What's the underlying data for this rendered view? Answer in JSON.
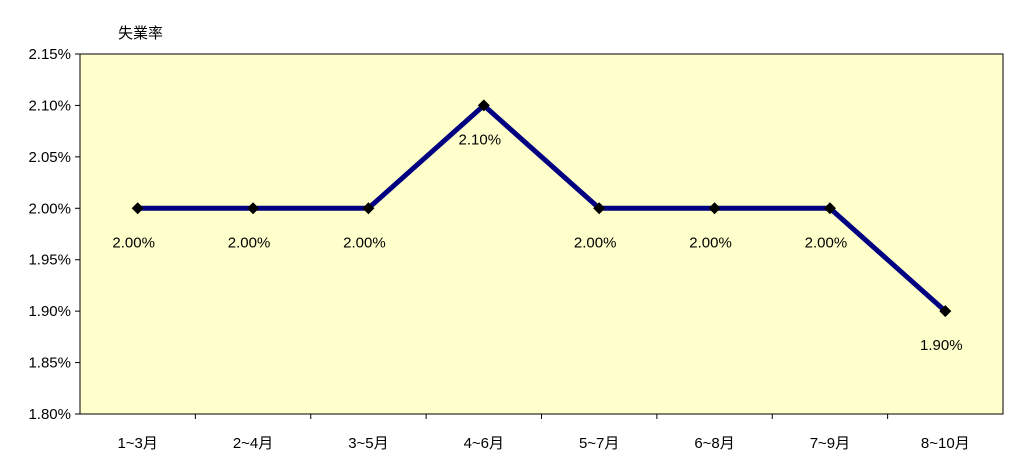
{
  "chart_data": {
    "type": "line",
    "ylabel": "失業率",
    "categories": [
      "1~3月",
      "2~4月",
      "3~5月",
      "4~6月",
      "5~7月",
      "6~8月",
      "7~9月",
      "8~10月"
    ],
    "values": [
      2.0,
      2.0,
      2.0,
      2.1,
      2.0,
      2.0,
      2.0,
      1.9
    ],
    "data_labels": [
      "2.00%",
      "2.00%",
      "2.00%",
      "2.10%",
      "2.00%",
      "2.00%",
      "2.00%",
      "1.90%"
    ],
    "ylim": [
      1.8,
      2.15
    ],
    "yticks": [
      1.8,
      1.85,
      1.9,
      1.95,
      2.0,
      2.05,
      2.1,
      2.15
    ],
    "ytick_labels": [
      "1.80%",
      "1.85%",
      "1.90%",
      "1.95%",
      "2.00%",
      "2.05%",
      "2.10%",
      "2.15%"
    ],
    "grid": false,
    "colors": {
      "plot_background": "#FFFFCC",
      "line": "#000080",
      "marker": "#000000",
      "axis": "#000000"
    }
  }
}
